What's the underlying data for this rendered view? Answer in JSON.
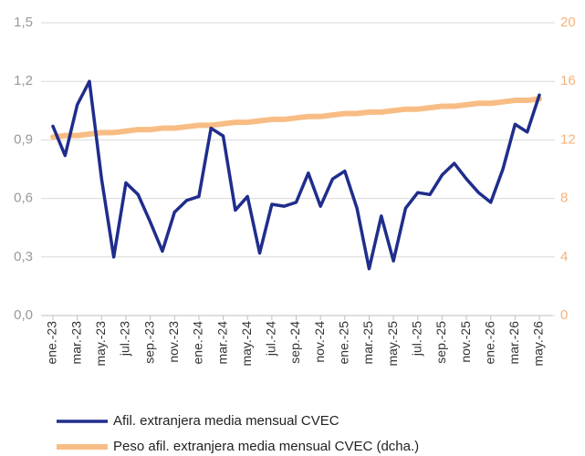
{
  "chart_data": {
    "type": "line",
    "categories": [
      "ene.-23",
      null,
      "mar.-23",
      null,
      "may.-23",
      null,
      "jul.-23",
      null,
      "sep.-23",
      null,
      "nov.-23",
      null,
      "ene.-24",
      null,
      "mar.-24",
      null,
      "may.-24",
      null,
      "jul.-24",
      null,
      "sep.-24",
      null,
      "nov.-24",
      null,
      "ene.-25",
      null,
      "mar.-25",
      null,
      "may.-25",
      null,
      "jul.-25",
      null,
      "sep.-25",
      null,
      "nov.-25",
      null,
      "ene.-26",
      null,
      "mar.-26",
      null,
      "may.-26"
    ],
    "series": [
      {
        "name": "Afil. extranjera media mensual CVEC",
        "color": "#1f2d8c",
        "axis": "y",
        "values": [
          0.97,
          0.82,
          1.08,
          1.2,
          0.7,
          0.3,
          0.68,
          0.62,
          0.48,
          0.33,
          0.53,
          0.59,
          0.61,
          0.96,
          0.92,
          0.54,
          0.61,
          0.32,
          0.57,
          0.56,
          0.58,
          0.73,
          0.56,
          0.7,
          0.74,
          0.55,
          0.24,
          0.51,
          0.28,
          0.55,
          0.63,
          0.62,
          0.72,
          0.78,
          0.7,
          0.63,
          0.58,
          0.75,
          0.98,
          0.94,
          1.13
        ]
      },
      {
        "name": "Peso afil. extranjera media mensual CVEC (dcha.)",
        "color": "#f8bd84",
        "axis": "y2",
        "values": [
          12.2,
          12.3,
          12.3,
          12.4,
          12.5,
          12.5,
          12.6,
          12.7,
          12.7,
          12.8,
          12.8,
          12.9,
          13.0,
          13.0,
          13.1,
          13.2,
          13.2,
          13.3,
          13.4,
          13.4,
          13.5,
          13.6,
          13.6,
          13.7,
          13.8,
          13.8,
          13.9,
          13.9,
          14.0,
          14.1,
          14.1,
          14.2,
          14.3,
          14.3,
          14.4,
          14.5,
          14.5,
          14.6,
          14.7,
          14.7,
          14.8
        ]
      }
    ],
    "ylim": [
      0,
      1.5
    ],
    "yticks": [
      {
        "value": 0,
        "label": "0,0"
      },
      {
        "value": 0.3,
        "label": "0,3"
      },
      {
        "value": 0.6,
        "label": "0,6"
      },
      {
        "value": 0.9,
        "label": "0,9"
      },
      {
        "value": 1.2,
        "label": "1,2"
      },
      {
        "value": 1.5,
        "label": "1,5"
      }
    ],
    "y2lim": [
      0,
      20
    ],
    "y2ticks": [
      0,
      4,
      8,
      12,
      16,
      20
    ],
    "grid": true
  }
}
